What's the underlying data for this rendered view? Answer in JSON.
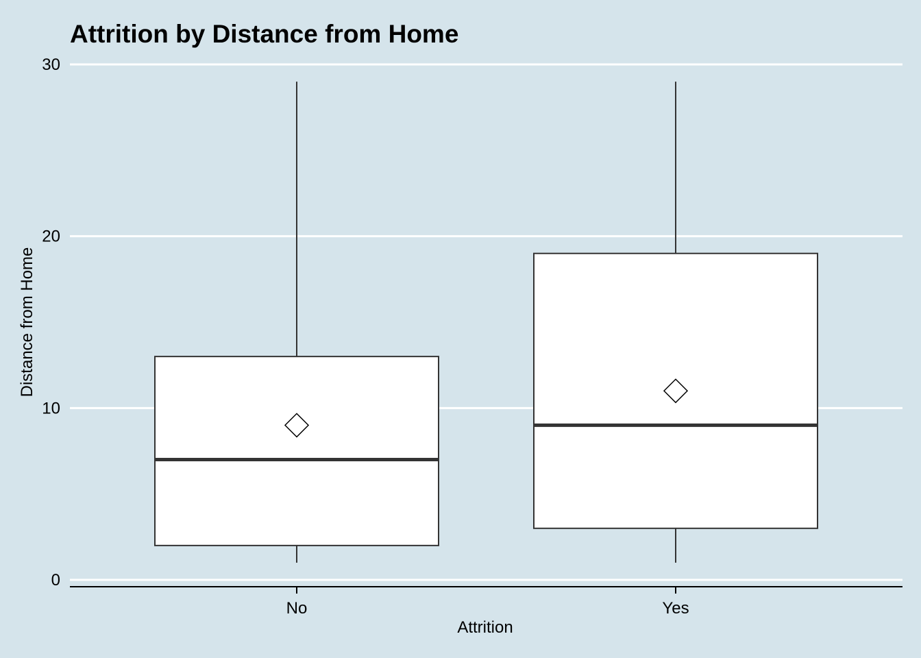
{
  "chart_data": {
    "type": "boxplot",
    "title": "Attrition by Distance from Home",
    "xlabel": "Attrition",
    "ylabel": "Distance from Home",
    "ylim": [
      0,
      30
    ],
    "yticks": [
      0,
      10,
      20,
      30
    ],
    "grid": "horizontal major",
    "categories": [
      "No",
      "Yes"
    ],
    "boxes": [
      {
        "category": "No",
        "min": 1,
        "q1": 2,
        "median": 7,
        "q3": 13,
        "max": 29,
        "mean": 9
      },
      {
        "category": "Yes",
        "min": 1,
        "q1": 3,
        "median": 9,
        "q3": 19,
        "max": 29,
        "mean": 11
      }
    ],
    "colors": {
      "background": "#d5e4eb",
      "grid": "#ffffff",
      "box_fill": "#ffffff",
      "box_stroke": "#333333",
      "median": "#333333",
      "axis": "#000000"
    }
  }
}
